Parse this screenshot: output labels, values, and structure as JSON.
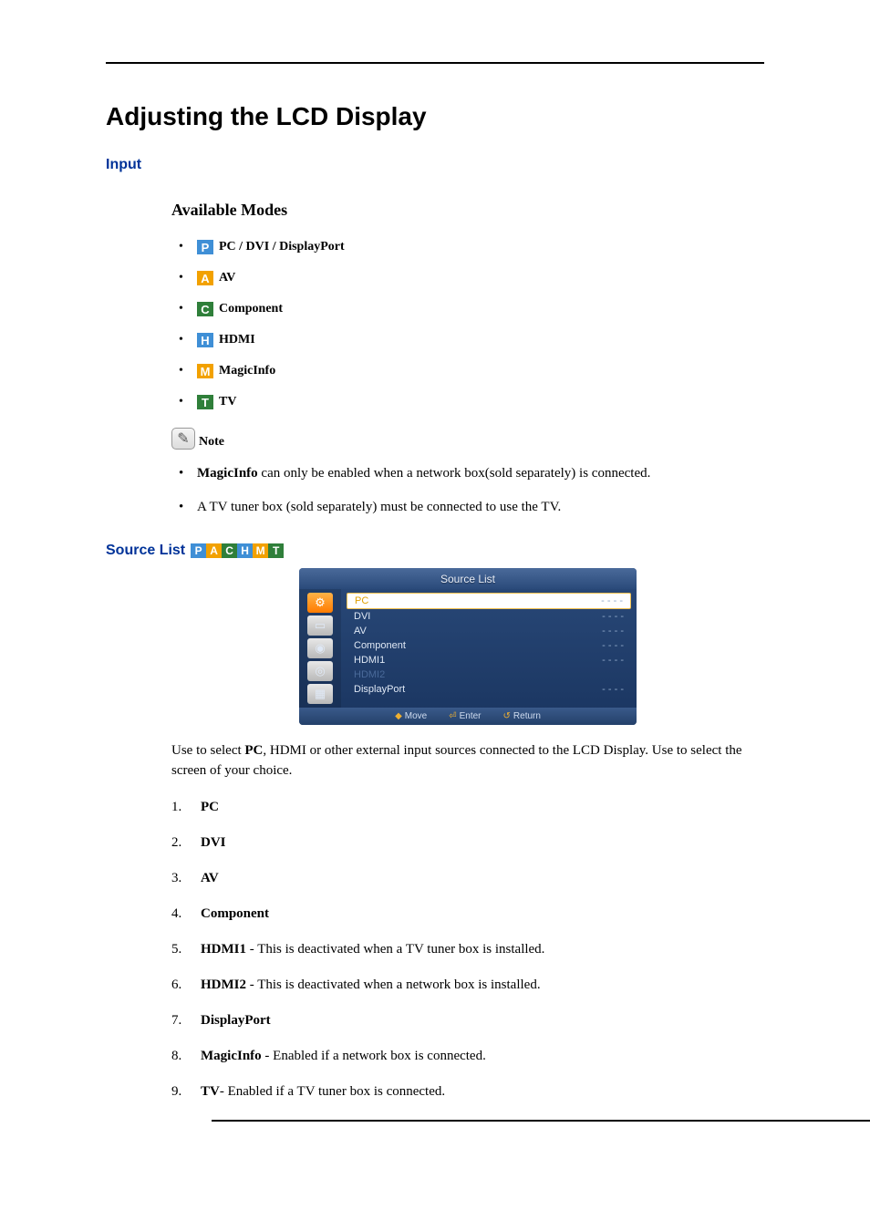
{
  "page_title": "Adjusting the LCD Display",
  "section_input": "Input",
  "available_modes_heading": "Available Modes",
  "mode_icon_colors": {
    "P": "#3f8fd6",
    "A": "#f2a100",
    "C": "#2f7f3a",
    "H": "#3f8fd6",
    "M": "#f2a100",
    "T": "#2f7f3a"
  },
  "modes": [
    {
      "key": "P",
      "letter": "P",
      "label": "PC / DVI / DisplayPort"
    },
    {
      "key": "A",
      "letter": "A",
      "label": "AV"
    },
    {
      "key": "C",
      "letter": "C",
      "label": "Component"
    },
    {
      "key": "H",
      "letter": "H",
      "label": "HDMI"
    },
    {
      "key": "M",
      "letter": "M",
      "label": "MagicInfo"
    },
    {
      "key": "T",
      "letter": "T",
      "label": "TV"
    }
  ],
  "note_label": "Note",
  "notes": {
    "n0_pre": "",
    "n0_bold": "MagicInfo",
    "n0_post": " can only be enabled when a network box(sold separately) is connected.",
    "n1": "A TV tuner box (sold separately) must be connected to use the TV."
  },
  "source_list_label": "Source List",
  "source_list_icons": [
    "P",
    "A",
    "C",
    "H",
    "M",
    "T"
  ],
  "osd": {
    "title": "Source List",
    "side_icons": [
      "⚙",
      "▭",
      "◉",
      "◎",
      "▦"
    ],
    "rows": [
      {
        "name": "PC",
        "status": "- - - -",
        "selected": true,
        "dim": false
      },
      {
        "name": "DVI",
        "status": "- - - -",
        "selected": false,
        "dim": false
      },
      {
        "name": "AV",
        "status": "- - - -",
        "selected": false,
        "dim": false
      },
      {
        "name": "Component",
        "status": "- - - -",
        "selected": false,
        "dim": false
      },
      {
        "name": "HDMI1",
        "status": "- - - -",
        "selected": false,
        "dim": false
      },
      {
        "name": "HDMI2",
        "status": "",
        "selected": false,
        "dim": true
      },
      {
        "name": "DisplayPort",
        "status": "- - - -",
        "selected": false,
        "dim": false
      }
    ],
    "footer": [
      {
        "sym": "◆",
        "label": "Move"
      },
      {
        "sym": "⏎",
        "label": "Enter"
      },
      {
        "sym": "↺",
        "label": "Return"
      }
    ]
  },
  "body_text_pre": "Use to select ",
  "body_text_bold": "PC",
  "body_text_post": ", HDMI or other external input sources connected to the LCD Display. Use to select the screen of your choice.",
  "sources": [
    {
      "bold": "PC",
      "rest": ""
    },
    {
      "bold": "DVI",
      "rest": ""
    },
    {
      "bold": "AV",
      "rest": ""
    },
    {
      "bold": "Component",
      "rest": ""
    },
    {
      "bold": "HDMI1",
      "rest": " - This is deactivated when a TV tuner box is installed."
    },
    {
      "bold": "HDMI2",
      "rest": " - This is deactivated when a network box is installed."
    },
    {
      "bold": "DisplayPort",
      "rest": ""
    },
    {
      "bold": "MagicInfo",
      "rest": " - Enabled if a network box is connected."
    },
    {
      "bold": "TV",
      "rest": "- Enabled if a TV tuner box is connected."
    }
  ]
}
